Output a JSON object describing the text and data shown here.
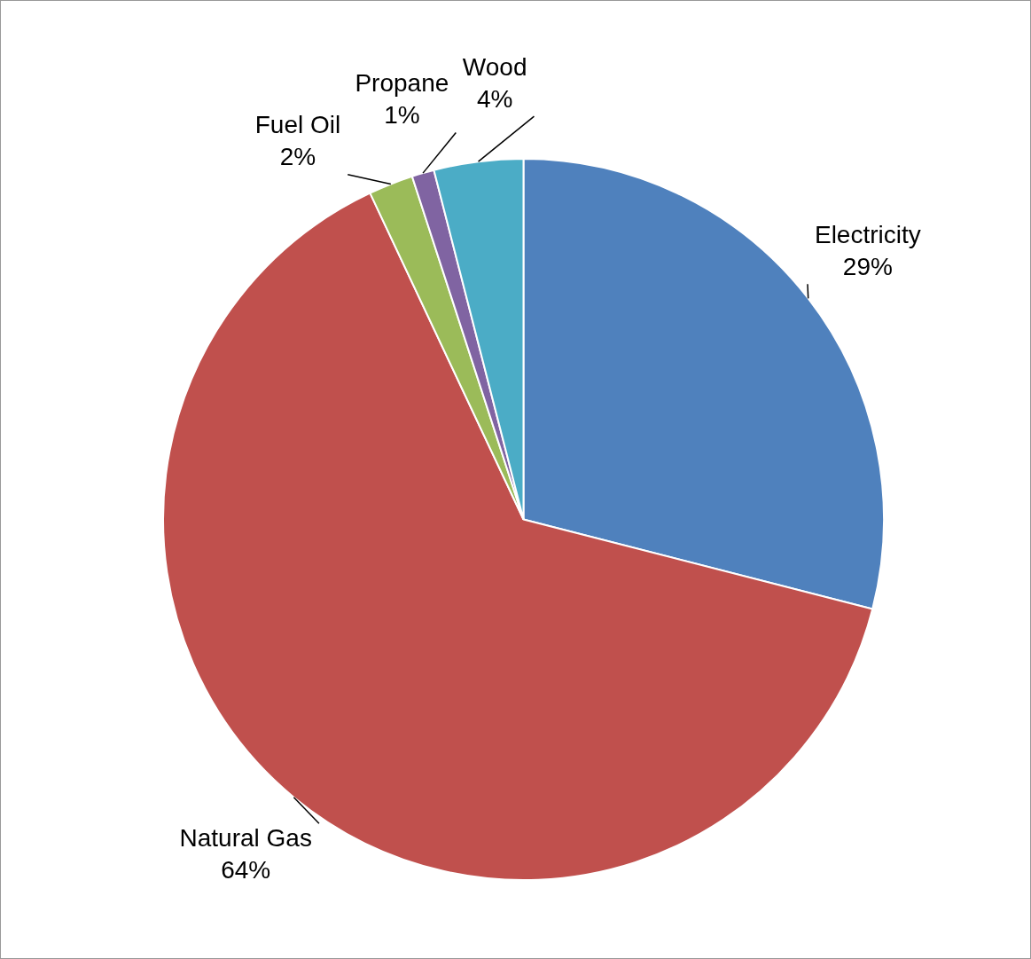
{
  "chart_data": {
    "type": "pie",
    "categories": [
      "Electricity",
      "Natural Gas",
      "Fuel Oil",
      "Propane",
      "Wood"
    ],
    "values": [
      29,
      64,
      2,
      1,
      4
    ],
    "colors": [
      "#4f81bd",
      "#c0504d",
      "#9bbb59",
      "#8064a2",
      "#4bacc6"
    ],
    "value_labels": [
      "29%",
      "64%",
      "2%",
      "1%",
      "4%"
    ]
  }
}
